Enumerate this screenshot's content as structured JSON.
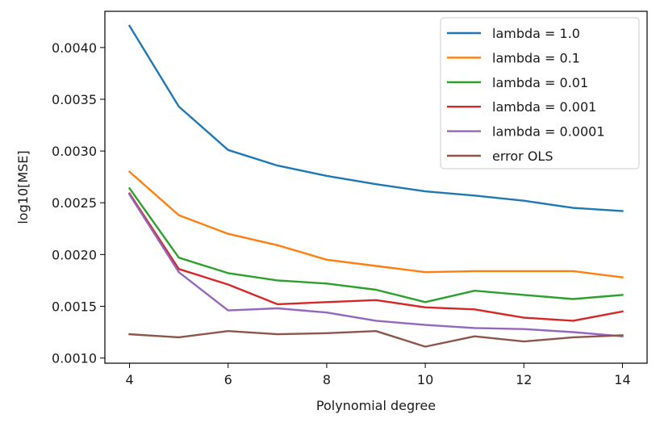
{
  "chart_data": {
    "type": "line",
    "title": "",
    "xlabel": "Polynomial degree",
    "ylabel": "log10[MSE]",
    "xlim": [
      3.5,
      14.5
    ],
    "ylim": [
      0.00095,
      0.00435
    ],
    "x": [
      4,
      5,
      6,
      7,
      8,
      9,
      10,
      11,
      12,
      13,
      14
    ],
    "xticks": [
      4,
      6,
      8,
      10,
      12,
      14
    ],
    "xtick_labels": [
      "4",
      "6",
      "8",
      "10",
      "12",
      "14"
    ],
    "yticks": [
      0.001,
      0.0015,
      0.002,
      0.0025,
      0.003,
      0.0035,
      0.004
    ],
    "ytick_labels": [
      "0.0010",
      "0.0015",
      "0.0020",
      "0.0025",
      "0.0030",
      "0.0035",
      "0.0040"
    ],
    "grid": false,
    "legend_position": "top-right",
    "series": [
      {
        "name": "lambda = 1.0",
        "color": "#1f77b4",
        "values": [
          0.00421,
          0.00343,
          0.00301,
          0.00286,
          0.00276,
          0.00268,
          0.00261,
          0.00257,
          0.00252,
          0.00245,
          0.00242
        ]
      },
      {
        "name": "lambda = 0.1",
        "color": "#ff7f0e",
        "values": [
          0.0028,
          0.00238,
          0.0022,
          0.00209,
          0.00195,
          0.00189,
          0.00183,
          0.00184,
          0.00184,
          0.00184,
          0.00178
        ]
      },
      {
        "name": "lambda = 0.01",
        "color": "#2ca02c",
        "values": [
          0.00264,
          0.00197,
          0.00182,
          0.00175,
          0.00172,
          0.00166,
          0.00154,
          0.00165,
          0.00161,
          0.00157,
          0.00161
        ]
      },
      {
        "name": "lambda = 0.001",
        "color": "#d62728",
        "values": [
          0.00259,
          0.00186,
          0.00171,
          0.00152,
          0.00154,
          0.00156,
          0.00149,
          0.00147,
          0.00139,
          0.00136,
          0.00145
        ]
      },
      {
        "name": "lambda = 0.0001",
        "color": "#9467bd",
        "values": [
          0.00258,
          0.00183,
          0.00146,
          0.00148,
          0.00144,
          0.00136,
          0.00132,
          0.00129,
          0.00128,
          0.00125,
          0.00121
        ]
      },
      {
        "name": "error OLS",
        "color": "#8c564b",
        "values": [
          0.00123,
          0.0012,
          0.00126,
          0.00123,
          0.00124,
          0.00126,
          0.00111,
          0.00121,
          0.00116,
          0.0012,
          0.00122
        ]
      }
    ]
  }
}
